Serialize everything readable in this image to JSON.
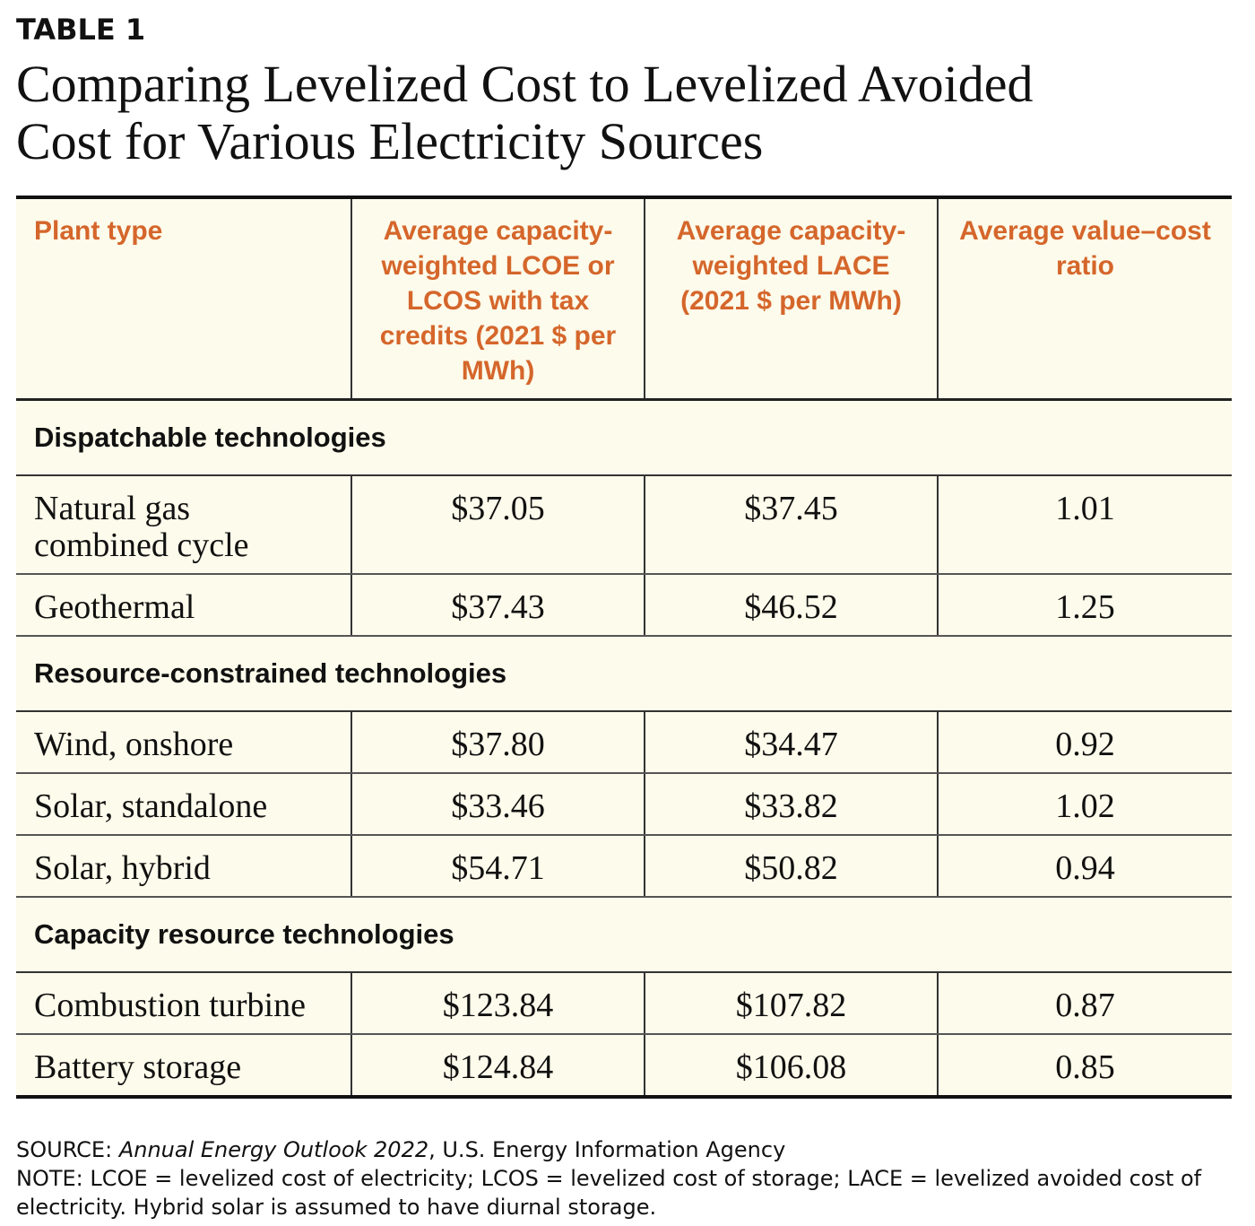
{
  "header": {
    "label": "TABLE 1",
    "title": "Comparing Levelized Cost to Levelized Avoided Cost for Various Electricity Sources"
  },
  "table": {
    "headers": [
      "Plant type",
      "Average capacity-weighted LCOE or LCOS with tax credits (2021 $ per MWh)",
      "Average capacity-weighted LACE (2021 $ per MWh)",
      "Average value–cost ratio"
    ],
    "sections": [
      {
        "title": "Dispatchable technologies",
        "rows": [
          [
            "Natural gas combined cycle",
            "$37.05",
            "$37.45",
            "1.01"
          ],
          [
            "Geothermal",
            "$37.43",
            "$46.52",
            "1.25"
          ]
        ]
      },
      {
        "title": "Resource-constrained technologies",
        "rows": [
          [
            "Wind, onshore",
            "$37.80",
            "$34.47",
            "0.92"
          ],
          [
            "Solar, standalone",
            "$33.46",
            "$33.82",
            "1.02"
          ],
          [
            "Solar, hybrid",
            "$54.71",
            "$50.82",
            "0.94"
          ]
        ]
      },
      {
        "title": "Capacity resource technologies",
        "rows": [
          [
            "Combustion turbine",
            "$123.84",
            "$107.82",
            "0.87"
          ],
          [
            "Battery storage",
            "$124.84",
            "$106.08",
            "0.85"
          ]
        ]
      }
    ]
  },
  "footer": {
    "source_label": "SOURCE:",
    "source_title": "Annual Energy Outlook 2022",
    "source_rest": ", U.S. Energy Information Agency",
    "note": "NOTE: LCOE = levelized cost of electricity; LCOS = levelized cost of storage; LACE = levelized avoided cost of electricity. Hybrid solar is assumed to have diurnal storage."
  }
}
